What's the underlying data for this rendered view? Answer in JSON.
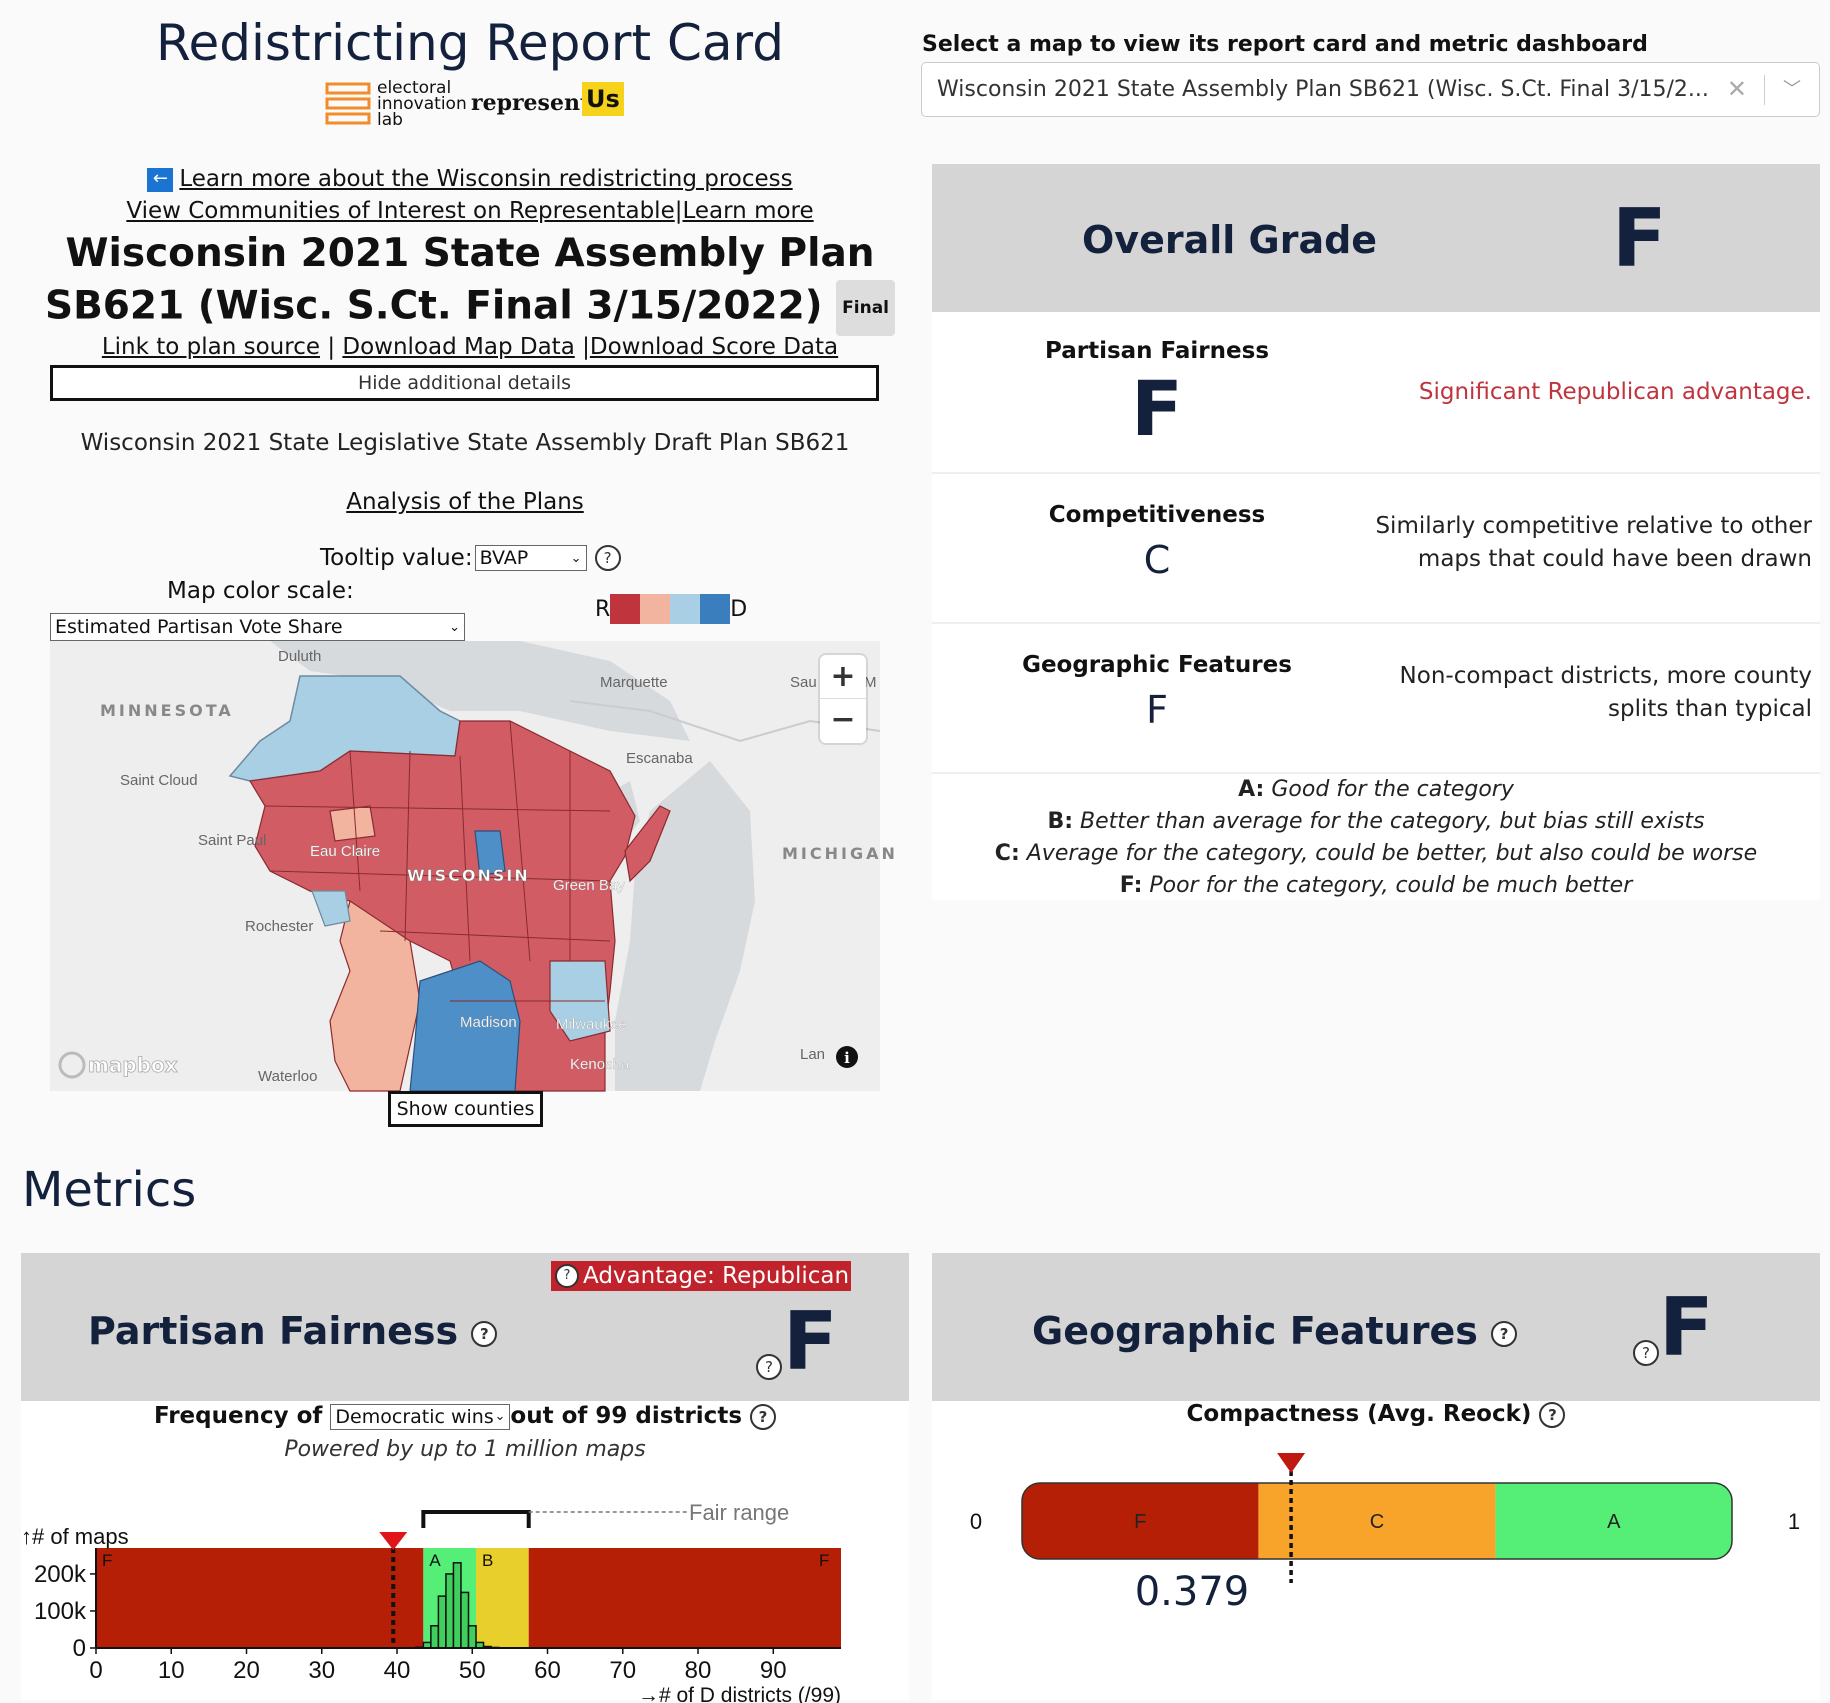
{
  "header": {
    "title": "Redistricting Report Card",
    "logo_eil_lines": [
      "electoral",
      "innovation",
      "lab"
    ],
    "logo_represent": "represent",
    "logo_us": "Us"
  },
  "links": {
    "process": "Learn more about the Wisconsin redistricting process",
    "coi": "View Communities of Interest on Representable",
    "coi_sep": "|",
    "learn_more": "Learn more",
    "plan_source": "Link to plan source",
    "sep1": " | ",
    "download_map": "Download Map Data",
    "sep2": " |",
    "download_score": "Download Score Data",
    "analysis": "Analysis of the Plans"
  },
  "plan": {
    "title": "Wisconsin 2021 State Assembly Plan SB621 (Wisc. S.Ct. Final 3/15/2022)",
    "badge": "Final",
    "hide_details": "Hide additional details",
    "description": "Wisconsin 2021 State Legislative State Assembly Draft Plan SB621"
  },
  "controls": {
    "tooltip_label": "Tooltip value:",
    "tooltip_value": "BVAP",
    "color_scale_label": "Map color scale:",
    "color_scale_value": "Estimated Partisan Vote Share",
    "legend_r": "R",
    "legend_d": "D",
    "legend_colors": [
      "#c0343e",
      "#f2b49e",
      "#a9cfe4",
      "#3a7ebd"
    ],
    "show_counties": "Show counties",
    "zoom_in": "+",
    "zoom_out": "−"
  },
  "map": {
    "labels": {
      "duluth": "Duluth",
      "marquette": "Marquette",
      "sau": "Sau",
      "m": "M",
      "minnesota": "MINNESOTA",
      "escanaba": "Escanaba",
      "saint_cloud": "Saint Cloud",
      "saint_paul": "Saint Paul",
      "eau_claire": "Eau Claire",
      "wisconsin": "WISCONSIN",
      "green_bay": "Green Bay",
      "michigan": "MICHIGAN",
      "rochester": "Rochester",
      "madison": "Madison",
      "milwaukee": "Milwaukee",
      "kenosha": "Kenosha",
      "waterloo": "Waterloo",
      "lan": "Lan",
      "mapbox": "mapbox"
    }
  },
  "selector": {
    "label": "Select a map to view its report card and metric dashboard",
    "value": "Wisconsin 2021 State Assembly Plan SB621 (Wisc. S.Ct. Final 3/15/2..."
  },
  "report_card": {
    "overall_label": "Overall Grade",
    "overall_grade": "F",
    "rows": [
      {
        "name": "Partisan Fairness",
        "grade": "F",
        "desc": "Significant Republican advantage."
      },
      {
        "name": "Competitiveness",
        "grade": "C",
        "desc": "Similarly competitive relative to other maps that could have been drawn"
      },
      {
        "name": "Geographic Features",
        "grade": "F",
        "desc": "Non-compact districts, more county splits than typical"
      }
    ],
    "key": [
      {
        "letter": "A:",
        "text": "Good for the category"
      },
      {
        "letter": "B:",
        "text": "Better than average for the category, but bias still exists"
      },
      {
        "letter": "C:",
        "text": "Average for the category, could be better, but also could be worse"
      },
      {
        "letter": "F:",
        "text": "Poor for the category, could be much better"
      }
    ],
    "colors": {
      "navy": "#14213d",
      "republican": "#c0343e"
    }
  },
  "metrics": {
    "title": "Metrics",
    "partisan": {
      "title": "Partisan Fairness",
      "grade": "F",
      "advantage": "Advantage: Republican",
      "freq_prefix": "Frequency of",
      "freq_select": "Democratic wins",
      "freq_suffix": "out of 99 districts",
      "powered": "Powered by up to 1 million maps",
      "fair_range": "Fair range",
      "y_label": "↑# of maps",
      "x_label": "→# of D districts (/99)",
      "y_ticks": [
        "200k",
        "100k",
        "0"
      ],
      "zone_letters": [
        "F",
        "A",
        "B",
        "F"
      ]
    },
    "geographic": {
      "title": "Geographic Features",
      "grade": "F",
      "compactness_label": "Compactness (Avg. Reock)",
      "bar_min": "0",
      "bar_max": "1",
      "zone_letters": [
        "F",
        "C",
        "A"
      ],
      "value_display": "0.379"
    }
  },
  "chart_data": [
    {
      "type": "histogram",
      "title": "Frequency of Democratic wins out of 99 districts",
      "xlabel": "# of D districts (/99)",
      "ylabel": "# of maps",
      "xlim": [
        0,
        99
      ],
      "ylim": [
        0,
        270000
      ],
      "x_ticks": [
        0,
        10,
        20,
        30,
        40,
        50,
        60,
        70,
        80,
        90
      ],
      "y_ticks": [
        0,
        100000,
        200000
      ],
      "zones": [
        {
          "grade": "F",
          "from": 0,
          "to": 43.5,
          "color": "#b51f06"
        },
        {
          "grade": "A",
          "from": 43.5,
          "to": 50.5,
          "color": "#55ee77"
        },
        {
          "grade": "B",
          "from": 50.5,
          "to": 57.5,
          "color": "#e8cf2b"
        },
        {
          "grade": "F",
          "from": 57.5,
          "to": 99,
          "color": "#b51f06"
        }
      ],
      "fair_range": [
        43.5,
        57.5
      ],
      "plan_value": 39.5,
      "bins_x": [
        43,
        44,
        45,
        46,
        47,
        48,
        49,
        50,
        51,
        52,
        53,
        54
      ],
      "bins_y": [
        2000,
        15000,
        60000,
        140000,
        200000,
        230000,
        150000,
        60000,
        15000,
        4000,
        1500,
        500
      ]
    },
    {
      "type": "bar",
      "title": "Compactness (Avg. Reock)",
      "range": [
        0,
        1
      ],
      "zones": [
        {
          "grade": "F",
          "from": 0,
          "to": 0.333,
          "color": "#b51f06"
        },
        {
          "grade": "C",
          "from": 0.333,
          "to": 0.667,
          "color": "#f8a42a"
        },
        {
          "grade": "A",
          "from": 0.667,
          "to": 1,
          "color": "#55ee77"
        }
      ],
      "value": 0.379
    }
  ]
}
